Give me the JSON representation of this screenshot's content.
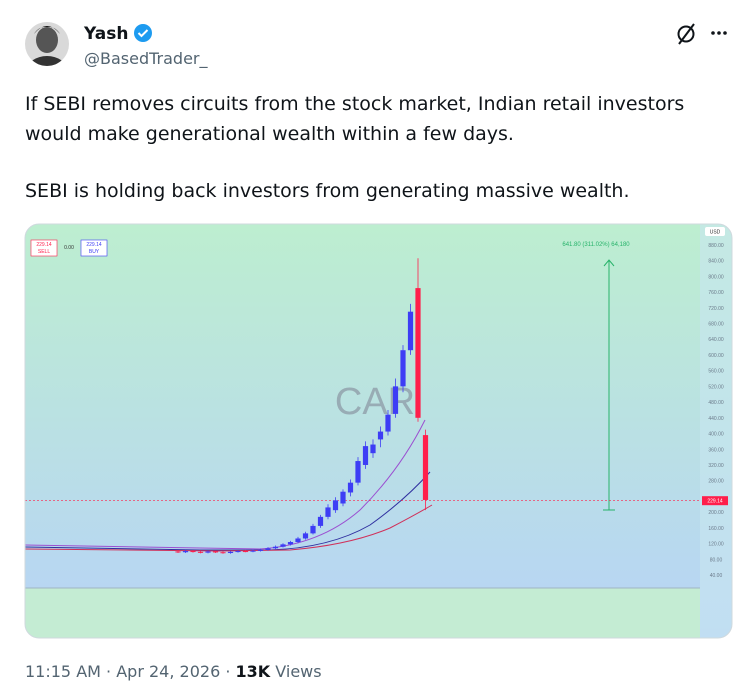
{
  "tweet": {
    "author": {
      "name": "Yash",
      "handle": "@BasedTrader_"
    },
    "body": [
      [
        "If SEBI removes circuits from the stock market, Indian retail investors",
        "would make generational wealth within a few days."
      ],
      [
        "SEBI is holding back investors from generating massive wealth."
      ]
    ],
    "time": "11:15 AM",
    "separator": "·",
    "date": "Apr 24, 2026",
    "views": "13K",
    "views_label": "Views"
  },
  "chart_data": {
    "type": "candlestick",
    "watermark": "CAR",
    "currency": "USD",
    "annotation": "641.80 (311.02%) 64,180",
    "sell_label": "SELL",
    "buy_label": "BUY",
    "spread": {
      "value": 0,
      "label": "0.00"
    },
    "last_price": 229.14,
    "open": [
      100,
      98,
      101,
      99,
      97,
      100,
      98,
      96,
      99,
      101,
      100,
      102,
      104,
      108,
      112,
      118,
      124,
      133,
      146,
      165,
      188,
      205,
      222,
      250,
      275,
      320,
      350,
      385,
      405,
      450,
      520,
      612,
      770,
      396
    ],
    "close": [
      98,
      101,
      99,
      97,
      100,
      98,
      96,
      99,
      101,
      100,
      102,
      104,
      108,
      112,
      118,
      124,
      133,
      146,
      165,
      188,
      212,
      230,
      252,
      275,
      330,
      368,
      372,
      405,
      448,
      520,
      612,
      710,
      440,
      231
    ],
    "high": [
      103,
      104,
      103,
      101,
      102,
      102,
      100,
      101,
      103,
      104,
      105,
      107,
      111,
      115,
      121,
      127,
      137,
      150,
      170,
      193,
      220,
      238,
      258,
      283,
      340,
      380,
      385,
      418,
      460,
      540,
      625,
      730,
      846,
      410
    ],
    "low": [
      96,
      96,
      97,
      95,
      95,
      96,
      94,
      94,
      97,
      98,
      98,
      100,
      102,
      106,
      110,
      115,
      121,
      130,
      143,
      160,
      182,
      198,
      215,
      240,
      268,
      310,
      338,
      365,
      395,
      440,
      505,
      600,
      430,
      205
    ],
    "up_color": "#3d3df5",
    "down_color": "#ff1f4b",
    "ylim": [
      7,
      928
    ],
    "yticks": [
      {
        "value": 880,
        "label": "880.00"
      },
      {
        "value": 840,
        "label": "840.00"
      },
      {
        "value": 800,
        "label": "800.00"
      },
      {
        "value": 760,
        "label": "760.00"
      },
      {
        "value": 720,
        "label": "720.00"
      },
      {
        "value": 680,
        "label": "680.00"
      },
      {
        "value": 640,
        "label": "640.00"
      },
      {
        "value": 600,
        "label": "600.00"
      },
      {
        "value": 560,
        "label": "560.00"
      },
      {
        "value": 520,
        "label": "520.00"
      },
      {
        "value": 480,
        "label": "480.00"
      },
      {
        "value": 440,
        "label": "440.00"
      },
      {
        "value": 400,
        "label": "400.00"
      },
      {
        "value": 360,
        "label": "360.00"
      },
      {
        "value": 320,
        "label": "320.00"
      },
      {
        "value": 280,
        "label": "280.00"
      },
      {
        "value": 200,
        "label": "200.00"
      },
      {
        "value": 160,
        "label": "160.00"
      },
      {
        "value": 120,
        "label": "120.00"
      },
      {
        "value": 80,
        "label": "80.00"
      },
      {
        "value": 40,
        "label": "40.00"
      }
    ]
  }
}
